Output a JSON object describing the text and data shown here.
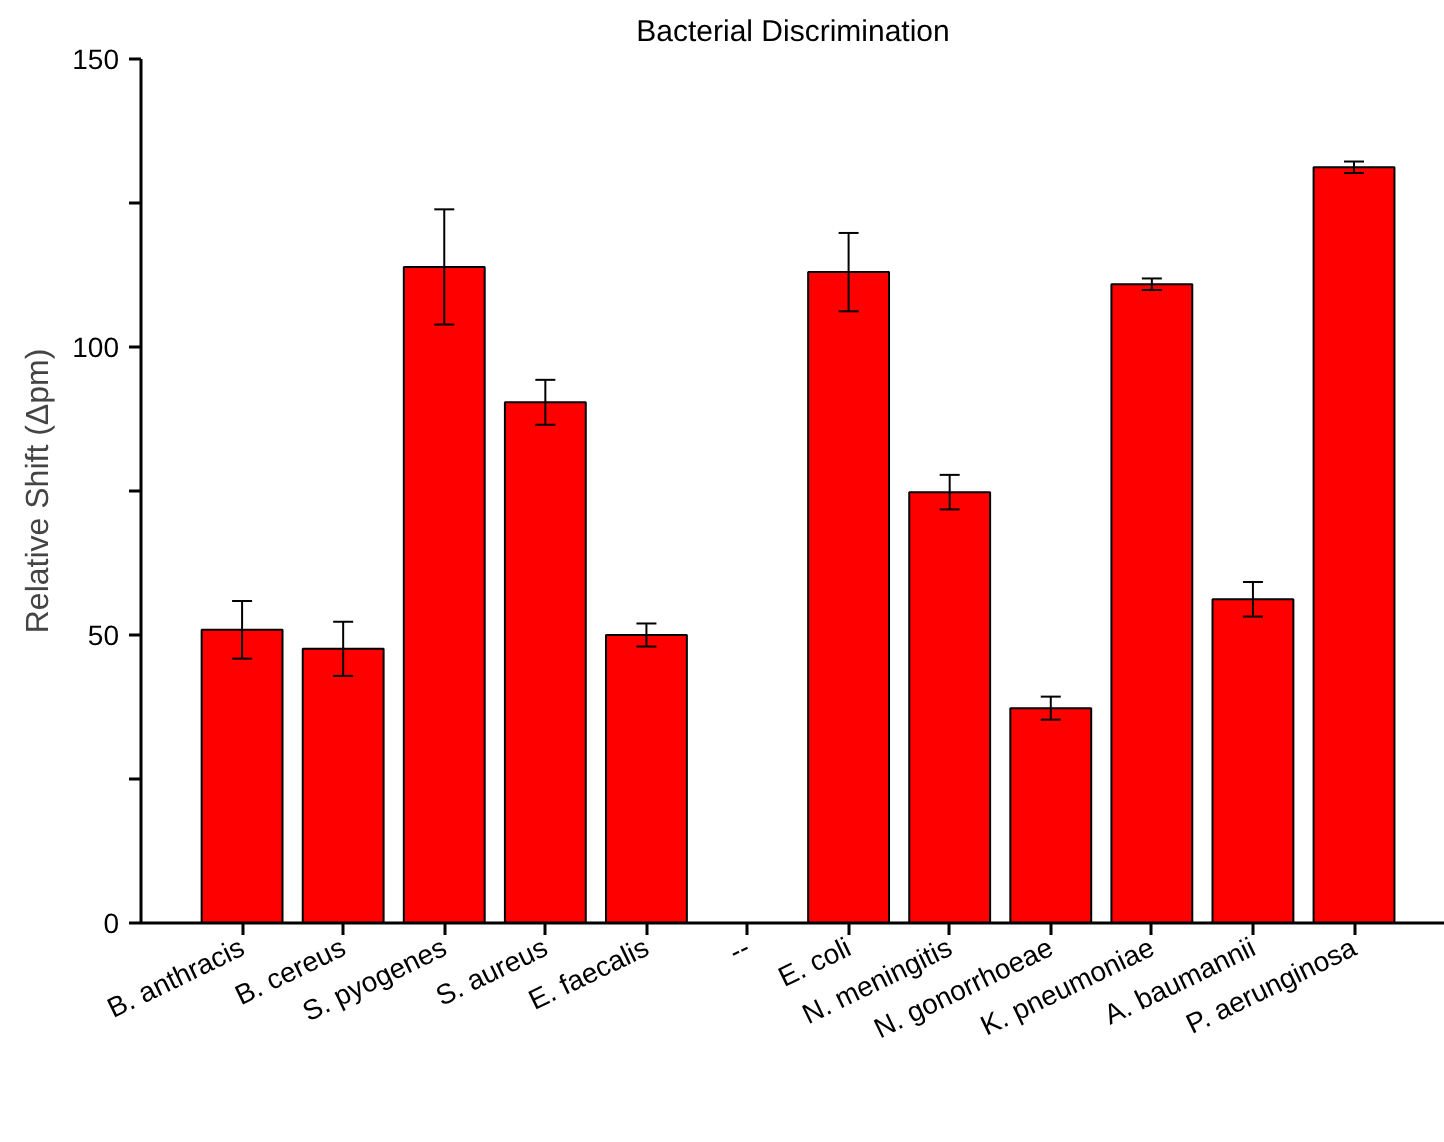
{
  "chart_data": {
    "type": "bar",
    "title": "Bacterial Discrimination",
    "ylabel": "Relative Shift (Δpm)",
    "categories": [
      "B. anthracis",
      "B. cereus",
      "S. pyogenes",
      "S. aureus",
      "E. faecalis",
      "--",
      "E. coli",
      "N. meningitis",
      "N. gonorrhoeae",
      "K. pneumoniae",
      "A. baumannii",
      "P. aerunginosa"
    ],
    "values": [
      50.9,
      47.6,
      113.9,
      90.4,
      50.0,
      null,
      113.0,
      74.8,
      37.3,
      110.9,
      56.2,
      131.2
    ],
    "errors": [
      5,
      4.7,
      10,
      3.9,
      2,
      null,
      6.8,
      3,
      2,
      1,
      3,
      1
    ],
    "color": "#ff0000",
    "ylim": [
      0,
      150
    ],
    "yticks": [
      0,
      {
        "value": 25,
        "label": null
      },
      50,
      {
        "value": 75,
        "label": null
      },
      100,
      {
        "value": 125,
        "label": null
      },
      150
    ],
    "grid": false
  }
}
